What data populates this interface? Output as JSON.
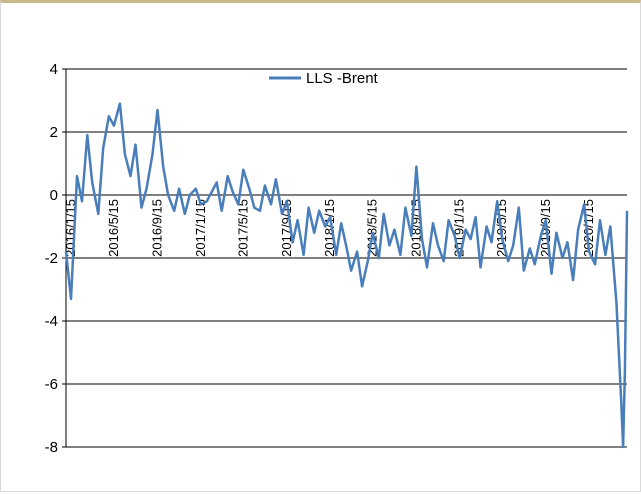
{
  "chart_data": {
    "type": "line",
    "title": "",
    "xlabel": "",
    "ylabel": "",
    "ylim": [
      -8,
      4
    ],
    "yticks": [
      4,
      2,
      0,
      -2,
      -4,
      -6,
      -8
    ],
    "xticks": [
      "2016/1/15",
      "2016/5/15",
      "2016/9/15",
      "2017/1/15",
      "2017/5/15",
      "2017/9/15",
      "2018/1/15",
      "2018/5/15",
      "2018/9/15",
      "2019/1/15",
      "2019/5/15",
      "2019/9/15",
      "2020/1/15"
    ],
    "grid": "horizontal",
    "legend": {
      "position": "top-center",
      "entries": [
        "LLS -Brent"
      ]
    },
    "series": [
      {
        "name": "LLS -Brent",
        "color": "#4a7ebb",
        "x": [
          "2016/1/1",
          "2016/1/15",
          "2016/2/1",
          "2016/2/15",
          "2016/3/1",
          "2016/3/15",
          "2016/4/1",
          "2016/4/15",
          "2016/5/1",
          "2016/5/15",
          "2016/6/1",
          "2016/6/15",
          "2016/7/1",
          "2016/7/15",
          "2016/8/1",
          "2016/8/15",
          "2016/9/1",
          "2016/9/15",
          "2016/10/1",
          "2016/10/15",
          "2016/11/1",
          "2016/11/15",
          "2016/12/1",
          "2016/12/15",
          "2017/1/1",
          "2017/1/15",
          "2017/2/1",
          "2017/2/15",
          "2017/3/1",
          "2017/3/15",
          "2017/4/1",
          "2017/4/15",
          "2017/5/1",
          "2017/5/15",
          "2017/6/1",
          "2017/6/15",
          "2017/7/1",
          "2017/7/15",
          "2017/8/1",
          "2017/8/15",
          "2017/9/1",
          "2017/9/15",
          "2017/10/1",
          "2017/10/15",
          "2017/11/1",
          "2017/11/15",
          "2017/12/1",
          "2017/12/15",
          "2018/1/1",
          "2018/1/15",
          "2018/2/1",
          "2018/2/15",
          "2018/3/1",
          "2018/3/15",
          "2018/4/1",
          "2018/4/15",
          "2018/5/1",
          "2018/5/15",
          "2018/6/1",
          "2018/6/15",
          "2018/7/1",
          "2018/7/15",
          "2018/8/1",
          "2018/8/15",
          "2018/9/1",
          "2018/9/15",
          "2018/10/1",
          "2018/10/15",
          "2018/11/1",
          "2018/11/15",
          "2018/12/1",
          "2018/12/15",
          "2019/1/1",
          "2019/1/15",
          "2019/2/1",
          "2019/2/15",
          "2019/3/1",
          "2019/3/15",
          "2019/4/1",
          "2019/4/15",
          "2019/5/1",
          "2019/5/15",
          "2019/6/1",
          "2019/6/15",
          "2019/7/1",
          "2019/7/15",
          "2019/8/1",
          "2019/8/15",
          "2019/9/1",
          "2019/9/15",
          "2019/10/1",
          "2019/10/15",
          "2019/11/1",
          "2019/11/15",
          "2019/12/1",
          "2019/12/15",
          "2020/1/1",
          "2020/1/15",
          "2020/2/1",
          "2020/2/15",
          "2020/3/1",
          "2020/3/15",
          "2020/4/1",
          "2020/4/15",
          "2020/4/20",
          "2020/4/25",
          "2020/5/1"
        ],
        "values": [
          -1.8,
          -3.3,
          0.6,
          -0.2,
          1.9,
          0.4,
          -0.6,
          1.5,
          2.5,
          2.2,
          2.9,
          1.3,
          0.6,
          1.6,
          -0.4,
          0.2,
          1.3,
          2.7,
          0.9,
          0.0,
          -0.5,
          0.2,
          -0.6,
          0.0,
          0.2,
          -0.3,
          -0.2,
          0.1,
          0.4,
          -0.5,
          0.6,
          0.1,
          -0.3,
          0.8,
          0.2,
          -0.4,
          -0.5,
          0.3,
          -0.3,
          0.5,
          -0.6,
          -0.2,
          -1.5,
          -0.8,
          -1.9,
          -0.4,
          -1.2,
          -0.5,
          -1.0,
          -0.7,
          -1.9,
          -0.9,
          -1.6,
          -2.4,
          -1.8,
          -2.9,
          -2.1,
          -1.2,
          -2.0,
          -0.6,
          -1.6,
          -1.1,
          -1.9,
          -0.4,
          -1.3,
          0.9,
          -1.4,
          -2.3,
          -0.9,
          -1.6,
          -2.1,
          -0.8,
          -1.3,
          -2.0,
          -1.1,
          -1.4,
          -0.7,
          -2.3,
          -1.0,
          -1.5,
          -0.2,
          -1.4,
          -2.1,
          -1.6,
          -0.4,
          -2.4,
          -1.7,
          -2.2,
          -1.3,
          -0.8,
          -2.5,
          -1.2,
          -2.0,
          -1.5,
          -2.7,
          -1.1,
          -0.3,
          -1.8,
          -2.2,
          -0.8,
          -1.9,
          -1.0,
          -3.4,
          -6.6,
          -8.0,
          -5.6,
          -0.5
        ]
      }
    ]
  }
}
